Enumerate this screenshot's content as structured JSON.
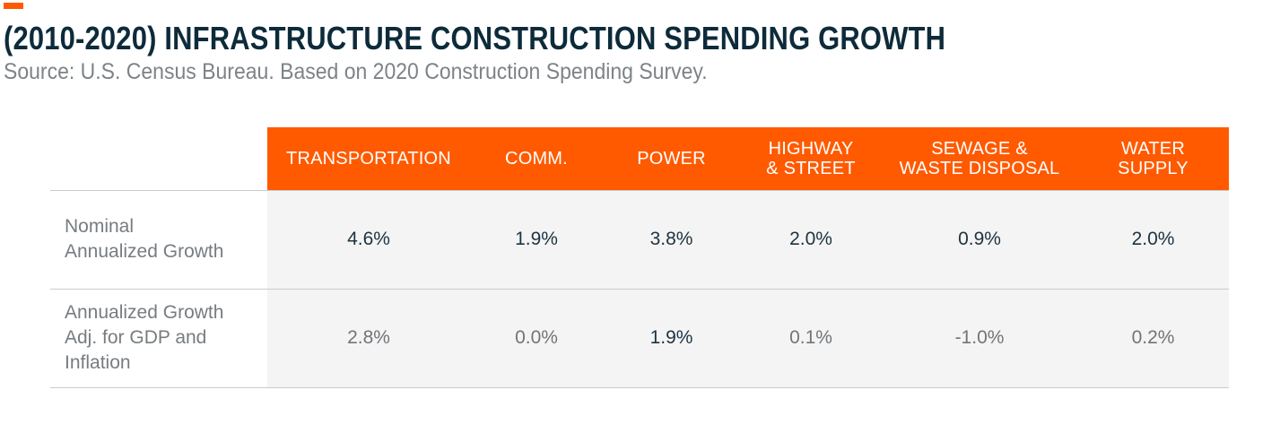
{
  "header": {
    "title": "(2010-2020) INFRASTRUCTURE CONSTRUCTION SPENDING GROWTH",
    "subtitle": "Source: U.S. Census Bureau. Based on 2020 Construction Spending Survey.",
    "accent_color": "#ff5a00"
  },
  "chart_data": {
    "type": "table",
    "title": "(2010-2020) INFRASTRUCTURE CONSTRUCTION SPENDING GROWTH",
    "subtitle": "Source: U.S. Census Bureau. Based on 2020 Construction Spending Survey.",
    "columns": [
      "TRANSPORTATION",
      "COMM.",
      "POWER",
      "HIGHWAY\n& STREET",
      "SEWAGE &\nWASTE DISPOSAL",
      "WATER\nSUPPLY"
    ],
    "rows": [
      {
        "label": "Nominal\nAnnualized Growth",
        "values": [
          "4.6%",
          "1.9%",
          "3.8%",
          "2.0%",
          "0.9%",
          "2.0%"
        ]
      },
      {
        "label": "Annualized Growth\nAdj. for GDP and\nInflation",
        "values": [
          "2.8%",
          "0.0%",
          "1.9%",
          "0.1%",
          "-1.0%",
          "0.2%"
        ]
      }
    ],
    "header_color": "#ff5a00",
    "cell_background": "#f4f4f4"
  }
}
